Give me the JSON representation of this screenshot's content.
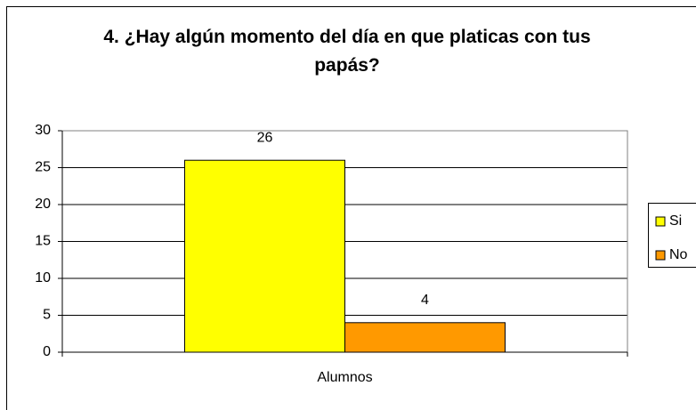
{
  "chart_data": {
    "type": "bar",
    "title": "4. ¿Hay algún momento del día en que platicas con tus papás?",
    "categories": [
      "Alumnos"
    ],
    "series": [
      {
        "name": "Si",
        "color": "#ffff00",
        "values": [
          26
        ]
      },
      {
        "name": "No",
        "color": "#ff9900",
        "values": [
          4
        ]
      }
    ],
    "ylim": [
      0,
      30
    ],
    "yticks": [
      0,
      5,
      10,
      15,
      20,
      25,
      30
    ],
    "grid": true,
    "legend": "right"
  }
}
